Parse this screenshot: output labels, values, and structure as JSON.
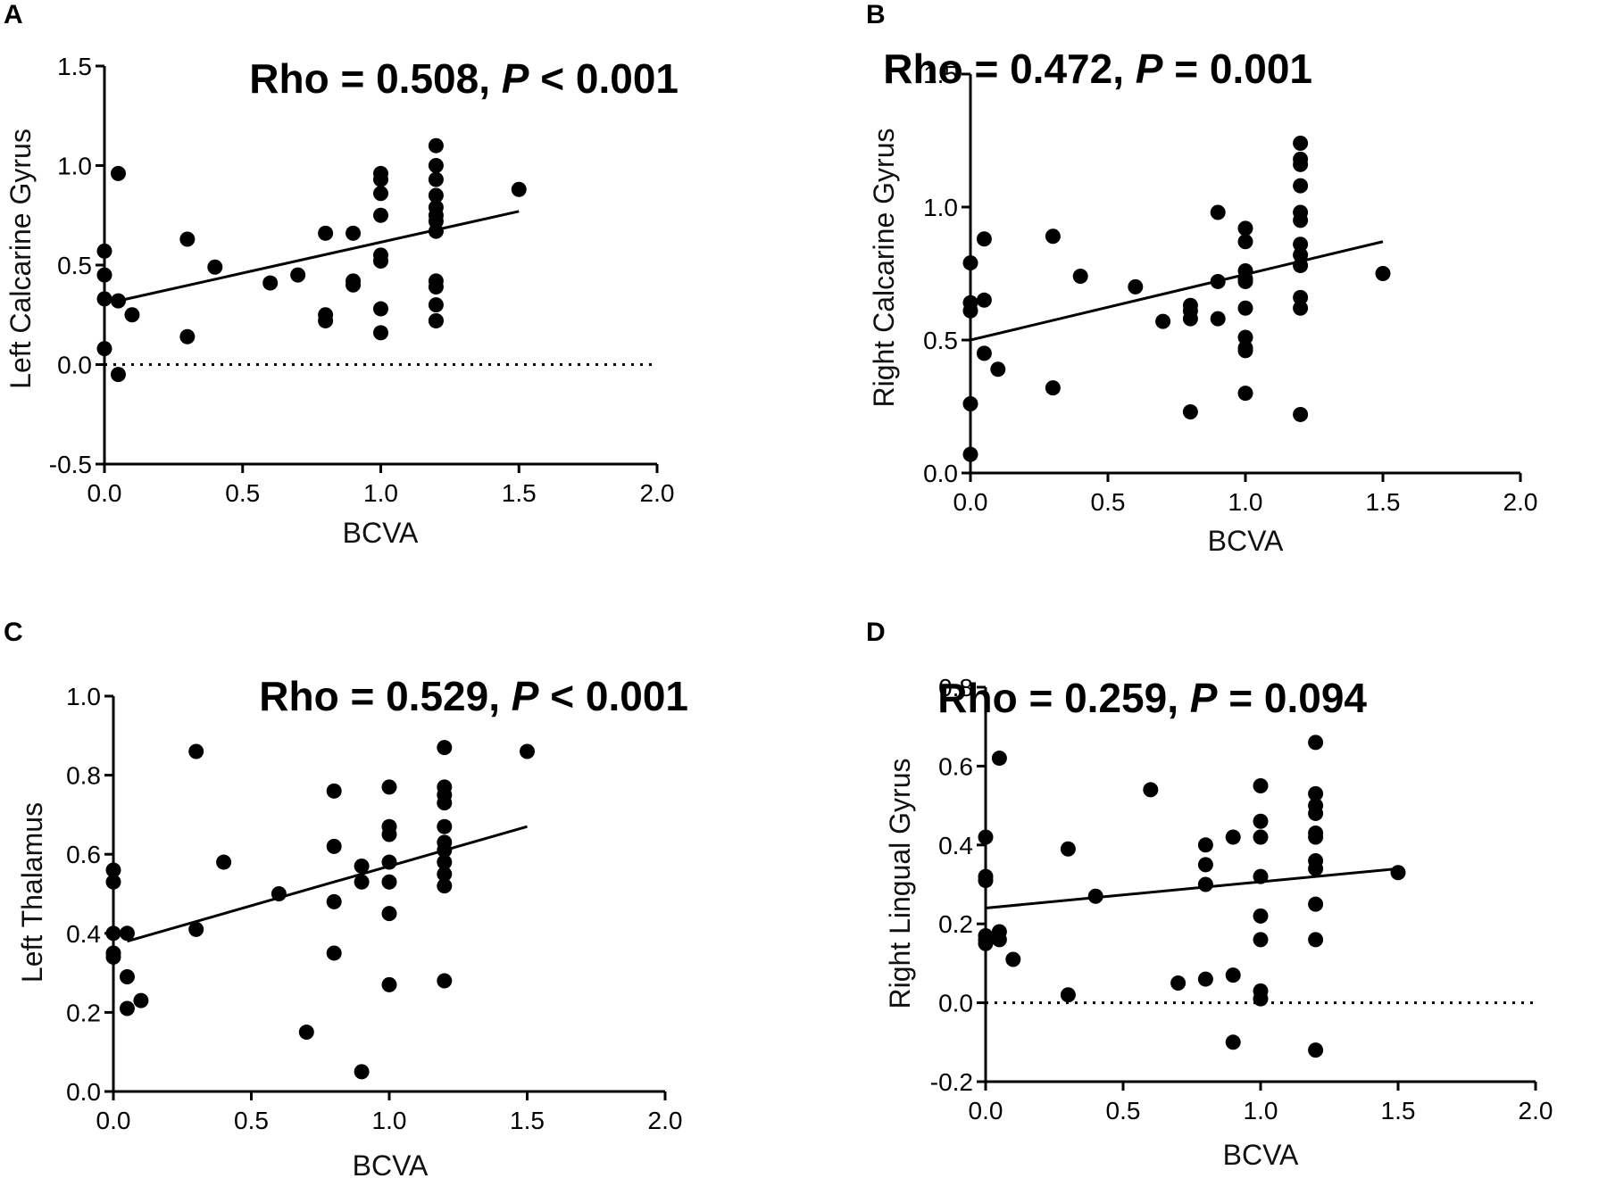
{
  "chart_data": [
    {
      "panel": "A",
      "type": "scatter",
      "title": "",
      "stat": {
        "prefix": "Rho = 0.508, ",
        "p_label": "P",
        "suffix": " < 0.001"
      },
      "xlabel": "BCVA",
      "ylabel": "Left Calcarine Gyrus",
      "xlim": [
        0,
        2
      ],
      "ylim": [
        -0.5,
        1.5
      ],
      "xticks": [
        "0.0",
        "0.5",
        "1.0",
        "1.5",
        "2.0"
      ],
      "yticks": [
        "-0.5",
        "0.0",
        "0.5",
        "1.0",
        "1.5"
      ],
      "zero_line": true,
      "fit": {
        "x": [
          0.05,
          1.5
        ],
        "y": [
          0.32,
          0.77
        ]
      },
      "x": [
        0,
        0,
        0,
        0,
        0.05,
        0.05,
        0.05,
        0.1,
        0.3,
        0.3,
        0.4,
        0.6,
        0.7,
        0.8,
        0.8,
        0.8,
        0.9,
        0.9,
        0.9,
        1.0,
        1.0,
        1.0,
        1.0,
        1.0,
        1.0,
        1.0,
        1.0,
        1.2,
        1.2,
        1.2,
        1.2,
        1.2,
        1.2,
        1.2,
        1.2,
        1.2,
        1.2,
        1.2,
        1.2,
        1.2,
        1.5
      ],
      "y": [
        0.57,
        0.45,
        0.33,
        0.08,
        0.96,
        0.32,
        -0.05,
        0.25,
        0.63,
        0.14,
        0.49,
        0.41,
        0.45,
        0.66,
        0.25,
        0.22,
        0.66,
        0.42,
        0.4,
        0.96,
        0.93,
        0.86,
        0.75,
        0.55,
        0.52,
        0.28,
        0.16,
        1.1,
        1.0,
        0.93,
        0.85,
        0.79,
        0.75,
        0.72,
        0.67,
        0.42,
        0.39,
        0.3,
        0.22,
        0.22,
        0.88
      ]
    },
    {
      "panel": "B",
      "type": "scatter",
      "title": "",
      "stat": {
        "prefix": "Rho = 0.472, ",
        "p_label": "P",
        "suffix": " = 0.001"
      },
      "xlabel": "BCVA",
      "ylabel": "Right Calcarine Gyrus",
      "xlim": [
        0,
        2
      ],
      "ylim": [
        0,
        1.5
      ],
      "xticks": [
        "0.0",
        "0.5",
        "1.0",
        "1.5",
        "2.0"
      ],
      "yticks": [
        "0.0",
        "0.5",
        "1.0",
        "1.5"
      ],
      "zero_line": false,
      "fit": {
        "x": [
          0,
          1.5
        ],
        "y": [
          0.5,
          0.87
        ]
      },
      "x": [
        0,
        0,
        0,
        0,
        0,
        0.05,
        0.05,
        0.05,
        0.1,
        0.3,
        0.3,
        0.4,
        0.6,
        0.7,
        0.8,
        0.8,
        0.8,
        0.8,
        0.9,
        0.9,
        0.9,
        1.0,
        1.0,
        1.0,
        1.0,
        1.0,
        1.0,
        1.0,
        1.0,
        1.0,
        1.0,
        1.2,
        1.2,
        1.2,
        1.2,
        1.2,
        1.2,
        1.2,
        1.2,
        1.2,
        1.2,
        1.2,
        1.2,
        1.5
      ],
      "y": [
        0.79,
        0.64,
        0.61,
        0.26,
        0.07,
        0.88,
        0.65,
        0.45,
        0.39,
        0.89,
        0.32,
        0.74,
        0.7,
        0.57,
        0.63,
        0.61,
        0.58,
        0.23,
        0.98,
        0.72,
        0.58,
        0.92,
        0.87,
        0.76,
        0.73,
        0.72,
        0.62,
        0.51,
        0.47,
        0.46,
        0.3,
        1.24,
        1.18,
        1.16,
        1.08,
        0.98,
        0.95,
        0.86,
        0.82,
        0.78,
        0.66,
        0.62,
        0.22,
        0.75
      ]
    },
    {
      "panel": "C",
      "type": "scatter",
      "title": "",
      "stat": {
        "prefix": "Rho = 0.529, ",
        "p_label": "P",
        "suffix": " < 0.001"
      },
      "xlabel": "BCVA",
      "ylabel": "Left Thalamus",
      "xlim": [
        0,
        2
      ],
      "ylim": [
        0,
        1
      ],
      "xticks": [
        "0.0",
        "0.5",
        "1.0",
        "1.5",
        "2.0"
      ],
      "yticks": [
        "0.0",
        "0.2",
        "0.4",
        "0.6",
        "0.8",
        "1.0"
      ],
      "zero_line": false,
      "fit": {
        "x": [
          0.05,
          1.5
        ],
        "y": [
          0.38,
          0.67
        ]
      },
      "x": [
        0,
        0,
        0,
        0,
        0,
        0.05,
        0.05,
        0.05,
        0.1,
        0.3,
        0.3,
        0.4,
        0.6,
        0.7,
        0.8,
        0.8,
        0.8,
        0.8,
        0.9,
        0.9,
        0.9,
        1.0,
        1.0,
        1.0,
        1.0,
        1.0,
        1.0,
        1.0,
        1.2,
        1.2,
        1.2,
        1.2,
        1.2,
        1.2,
        1.2,
        1.2,
        1.2,
        1.2,
        1.2,
        1.5
      ],
      "y": [
        0.56,
        0.53,
        0.4,
        0.35,
        0.34,
        0.4,
        0.29,
        0.21,
        0.23,
        0.86,
        0.41,
        0.58,
        0.5,
        0.15,
        0.76,
        0.62,
        0.48,
        0.35,
        0.57,
        0.53,
        0.05,
        0.77,
        0.67,
        0.65,
        0.58,
        0.53,
        0.45,
        0.27,
        0.87,
        0.77,
        0.75,
        0.73,
        0.67,
        0.63,
        0.61,
        0.58,
        0.55,
        0.52,
        0.28,
        0.86
      ]
    },
    {
      "panel": "D",
      "type": "scatter",
      "title": "",
      "stat": {
        "prefix": "Rho = 0.259, ",
        "p_label": "P",
        "suffix": " = 0.094"
      },
      "xlabel": "BCVA",
      "ylabel": "Right Lingual Gyrus",
      "xlim": [
        0,
        2
      ],
      "ylim": [
        -0.2,
        0.8
      ],
      "xticks": [
        "0.0",
        "0.5",
        "1.0",
        "1.5",
        "2.0"
      ],
      "yticks": [
        "-0.2",
        "0.0",
        "0.2",
        "0.4",
        "0.6",
        "0.8"
      ],
      "zero_line": true,
      "fit": {
        "x": [
          0,
          1.5
        ],
        "y": [
          0.24,
          0.34
        ]
      },
      "x": [
        0,
        0,
        0,
        0,
        0,
        0,
        0.05,
        0.05,
        0.05,
        0.1,
        0.3,
        0.3,
        0.4,
        0.6,
        0.7,
        0.8,
        0.8,
        0.8,
        0.8,
        0.9,
        0.9,
        0.9,
        1.0,
        1.0,
        1.0,
        1.0,
        1.0,
        1.0,
        1.0,
        1.0,
        1.2,
        1.2,
        1.2,
        1.2,
        1.2,
        1.2,
        1.2,
        1.2,
        1.2,
        1.2,
        1.2,
        1.5
      ],
      "y": [
        0.42,
        0.32,
        0.31,
        0.17,
        0.16,
        0.15,
        0.62,
        0.18,
        0.16,
        0.11,
        0.39,
        0.02,
        0.27,
        0.54,
        0.05,
        0.4,
        0.35,
        0.3,
        0.06,
        0.42,
        0.07,
        -0.1,
        0.55,
        0.46,
        0.42,
        0.32,
        0.22,
        0.16,
        0.03,
        0.01,
        0.66,
        0.53,
        0.5,
        0.48,
        0.43,
        0.42,
        0.36,
        0.34,
        0.25,
        0.16,
        -0.12,
        0.33
      ]
    }
  ]
}
